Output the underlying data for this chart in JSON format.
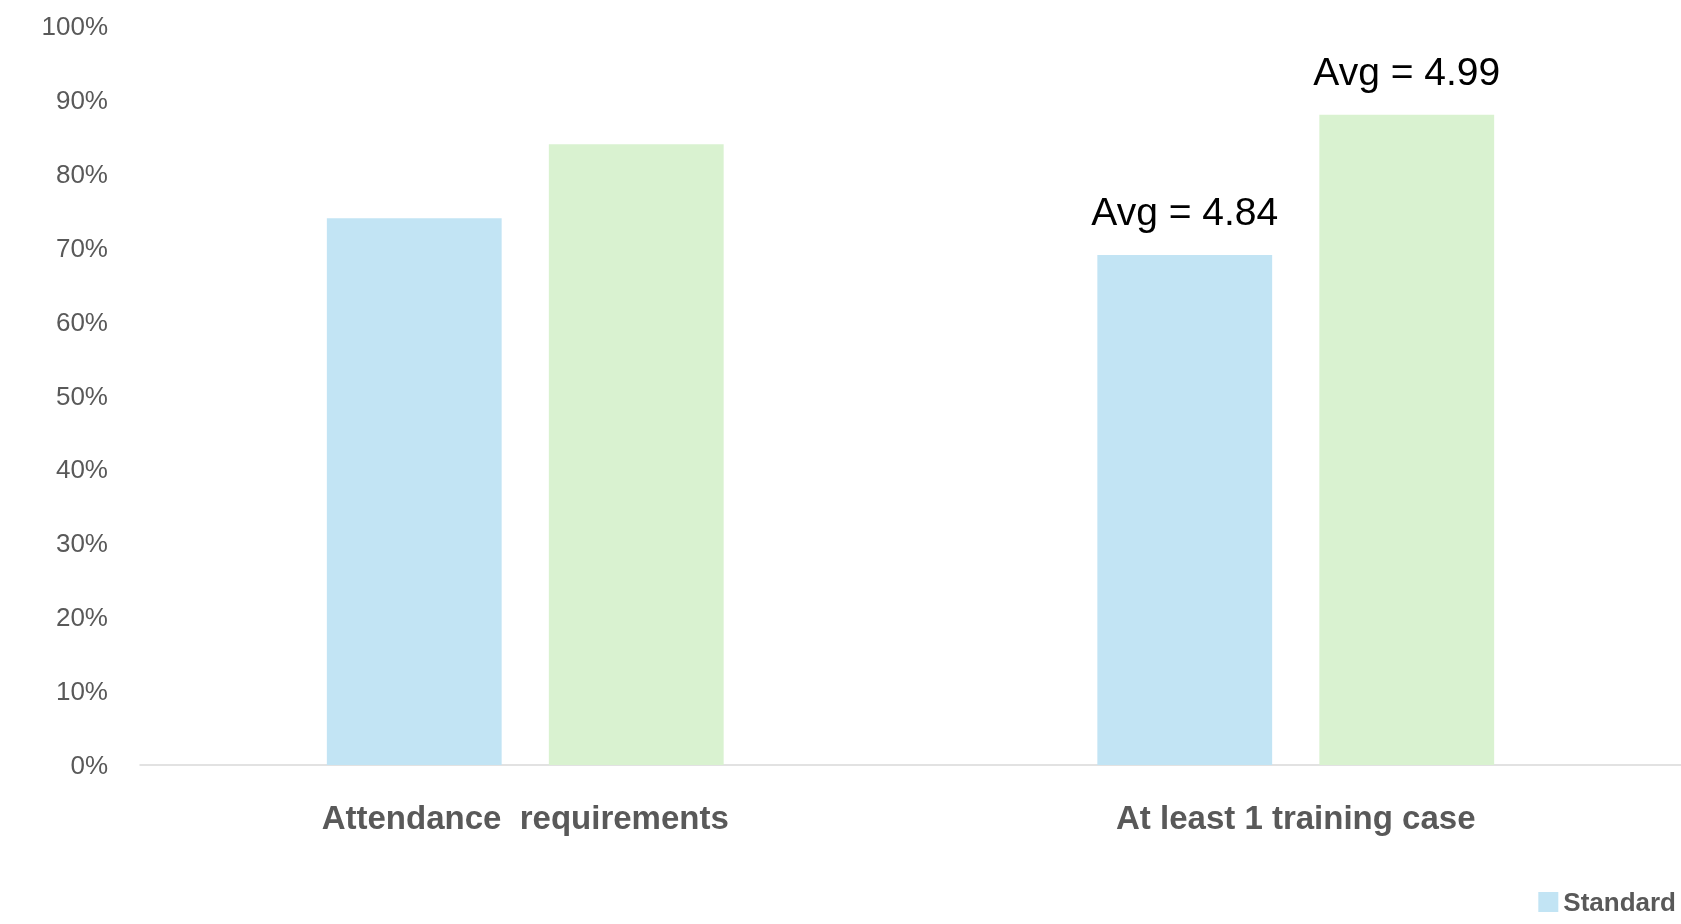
{
  "chart_data": {
    "type": "bar",
    "categories": [
      "Attendance  requirements",
      "At least 1 training case"
    ],
    "series": [
      {
        "name": "Standard",
        "color": "#c2e4f4",
        "values": [
          74,
          69
        ]
      },
      {
        "color": "#d9f2d0",
        "values": [
          84,
          88
        ]
      }
    ],
    "ylim": [
      0,
      100
    ],
    "yticks": [
      {
        "value": 0,
        "label": "0%"
      },
      {
        "value": 10,
        "label": "10%"
      },
      {
        "value": 20,
        "label": "20%"
      },
      {
        "value": 30,
        "label": "30%"
      },
      {
        "value": 40,
        "label": "40%"
      },
      {
        "value": 50,
        "label": "50%"
      },
      {
        "value": 60,
        "label": "60%"
      },
      {
        "value": 70,
        "label": "70%"
      },
      {
        "value": 80,
        "label": "80%"
      },
      {
        "value": 90,
        "label": "90%"
      },
      {
        "value": 100,
        "label": "100%"
      }
    ],
    "annotations": [
      "Avg = 4.84",
      "Avg = 4.99"
    ],
    "grid": false,
    "legend": "bottom right"
  }
}
